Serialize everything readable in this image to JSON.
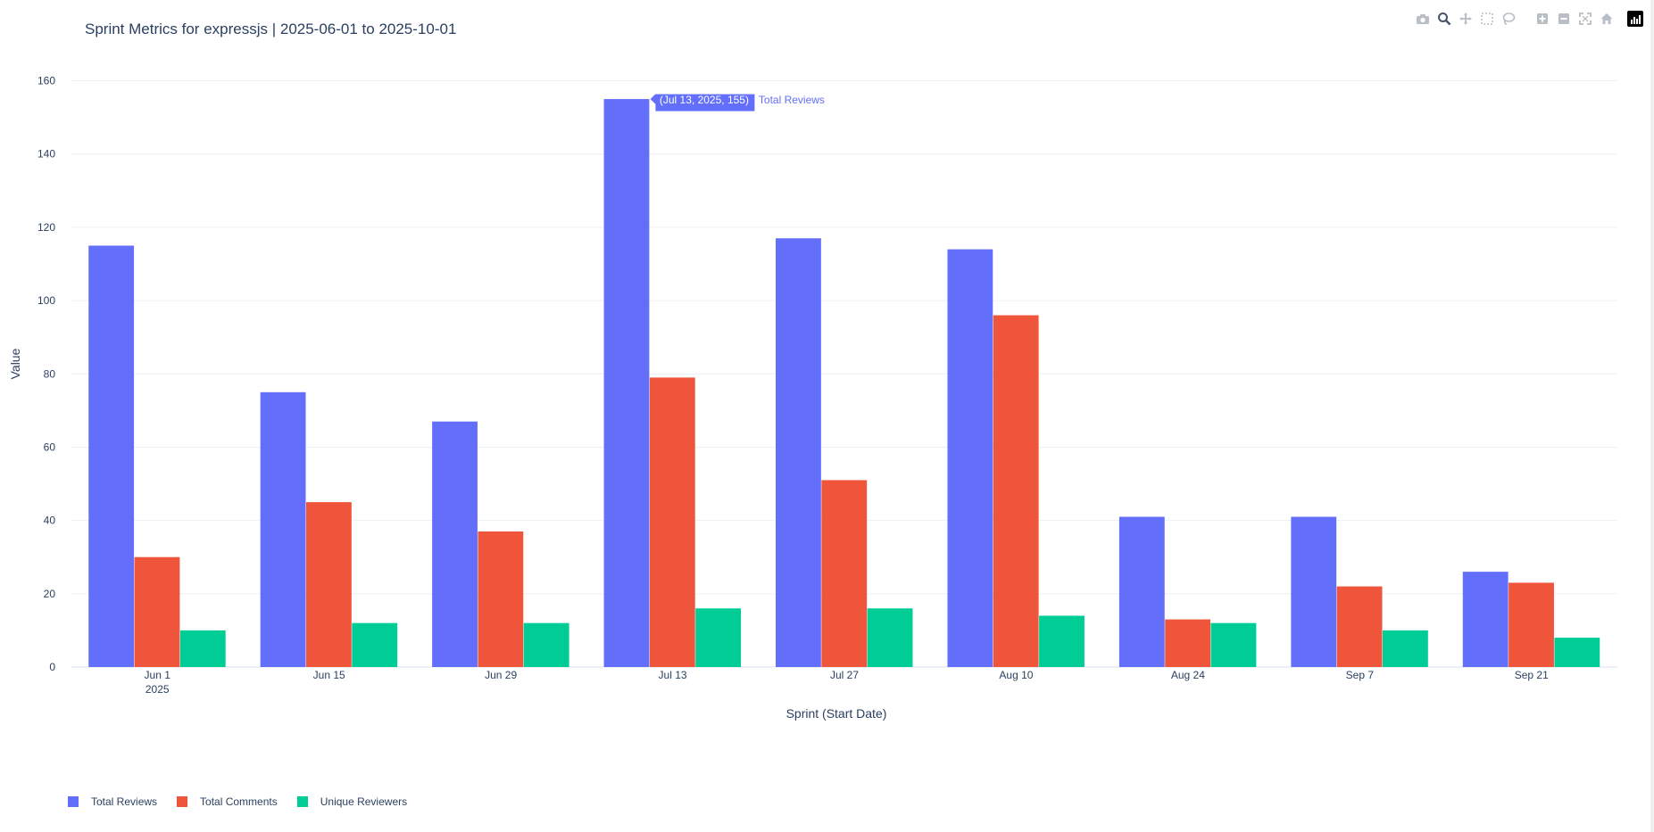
{
  "chart_data": {
    "type": "bar",
    "title": "Sprint Metrics for expressjs | 2025-06-01 to 2025-10-01",
    "xlabel": "Sprint (Start Date)",
    "ylabel": "Value",
    "categories": [
      "Jun 1",
      "Jun 15",
      "Jun 29",
      "Jul 13",
      "Jul 27",
      "Aug 10",
      "Aug 24",
      "Sep 7",
      "Sep 21"
    ],
    "year_label": "2025",
    "yticks": [
      0,
      20,
      40,
      60,
      80,
      100,
      120,
      140,
      160
    ],
    "ylim": [
      0,
      165
    ],
    "grid": true,
    "legend_position": "bottom-left",
    "series": [
      {
        "name": "Total Reviews",
        "color": "#636efa",
        "values": [
          115,
          75,
          67,
          155,
          117,
          114,
          41,
          41,
          26
        ]
      },
      {
        "name": "Total Comments",
        "color": "#ef553b",
        "values": [
          30,
          45,
          37,
          79,
          51,
          96,
          13,
          22,
          23
        ]
      },
      {
        "name": "Unique Reviewers",
        "color": "#00cc96",
        "values": [
          10,
          12,
          12,
          16,
          16,
          14,
          12,
          10,
          8
        ]
      }
    ],
    "hover": {
      "text": "(Jul 13, 2025, 155)",
      "series": "Total Reviews",
      "category_index": 3,
      "series_index": 0
    }
  },
  "modebar": {
    "icons": [
      "camera-icon",
      "zoom-icon",
      "pan-icon",
      "box-select-icon",
      "lasso-icon",
      "zoom-in-icon",
      "zoom-out-icon",
      "autoscale-icon",
      "reset-axes-icon",
      "plotly-logo-icon"
    ]
  }
}
